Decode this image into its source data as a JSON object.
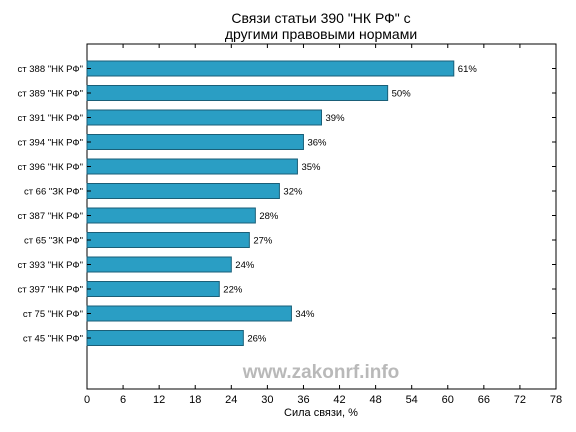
{
  "chart_data": {
    "type": "bar",
    "orientation": "horizontal",
    "title_lines": [
      "Связи статьи 390 \"НК РФ\" с",
      "другими правовыми нормами"
    ],
    "xlabel": "Сила связи, %",
    "ylabel": "",
    "xlim": [
      0,
      78
    ],
    "xticks": [
      0,
      6,
      12,
      18,
      24,
      30,
      36,
      42,
      48,
      54,
      60,
      66,
      72,
      78
    ],
    "categories": [
      "ст 388 \"НК РФ\"",
      "ст 389 \"НК РФ\"",
      "ст 391 \"НК РФ\"",
      "ст 394 \"НК РФ\"",
      "ст 396 \"НК РФ\"",
      "ст 66 \"ЗК РФ\"",
      "ст 387 \"НК РФ\"",
      "ст 65 \"ЗК РФ\"",
      "ст 393 \"НК РФ\"",
      "ст 397 \"НК РФ\"",
      "ст 75 \"НК РФ\"",
      "ст 45 \"НК РФ\""
    ],
    "values": [
      61,
      50,
      39,
      36,
      35,
      32,
      28,
      27,
      24,
      22,
      34,
      26
    ],
    "value_labels": [
      "61%",
      "50%",
      "39%",
      "36%",
      "35%",
      "32%",
      "28%",
      "27%",
      "24%",
      "22%",
      "34%",
      "26%"
    ],
    "bar_color": "#2a9ec4",
    "bar_edge_color": "#1a5f78",
    "grid": false,
    "legend": "none"
  },
  "watermark": "www.zakonrf.info"
}
